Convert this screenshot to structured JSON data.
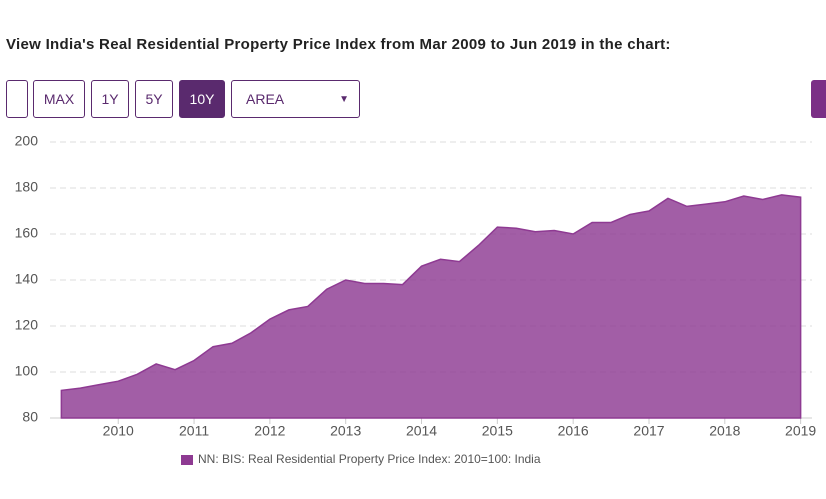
{
  "heading": "View India's Real Residential Property Price Index from Mar 2009 to Jun 2019 in the chart:",
  "buttons": [
    "MAX",
    "1Y",
    "5Y",
    "10Y"
  ],
  "chart_type_select": "AREA",
  "chart_data": {
    "type": "area",
    "color": "#8e3a92",
    "x": [
      2009.25,
      2009.5,
      2009.75,
      2010,
      2010.25,
      2010.5,
      2010.75,
      2011,
      2011.25,
      2011.5,
      2011.75,
      2012,
      2012.25,
      2012.5,
      2012.75,
      2013,
      2013.25,
      2013.5,
      2013.75,
      2014,
      2014.25,
      2014.5,
      2014.75,
      2015,
      2015.25,
      2015.5,
      2015.75,
      2016,
      2016.25,
      2016.5,
      2016.75,
      2017,
      2017.25,
      2017.5,
      2017.75,
      2018,
      2018.25,
      2018.5,
      2018.75,
      2019
    ],
    "series": [
      {
        "name": "NN: BIS: Real Residential Property Price Index: 2010=100: India",
        "color": "#8e3a92",
        "values": [
          92,
          93,
          94.5,
          96,
          99,
          103.5,
          101,
          105,
          111,
          112.5,
          117,
          123,
          127,
          128.5,
          136,
          140,
          138.5,
          138.5,
          138,
          146,
          149,
          148,
          155,
          163,
          162.5,
          161,
          161.5,
          160,
          165,
          165,
          168.5,
          170,
          175.5,
          172,
          173,
          174,
          176.5,
          175,
          177,
          176
        ]
      }
    ],
    "xlim": [
      2009.1,
      2019.15
    ],
    "xticks": [
      2010,
      2011,
      2012,
      2013,
      2014,
      2015,
      2016,
      2017,
      2018,
      2019
    ],
    "ylim": [
      80,
      200
    ],
    "yticks": [
      80,
      100,
      120,
      140,
      160,
      180,
      200
    ],
    "grid": true
  }
}
